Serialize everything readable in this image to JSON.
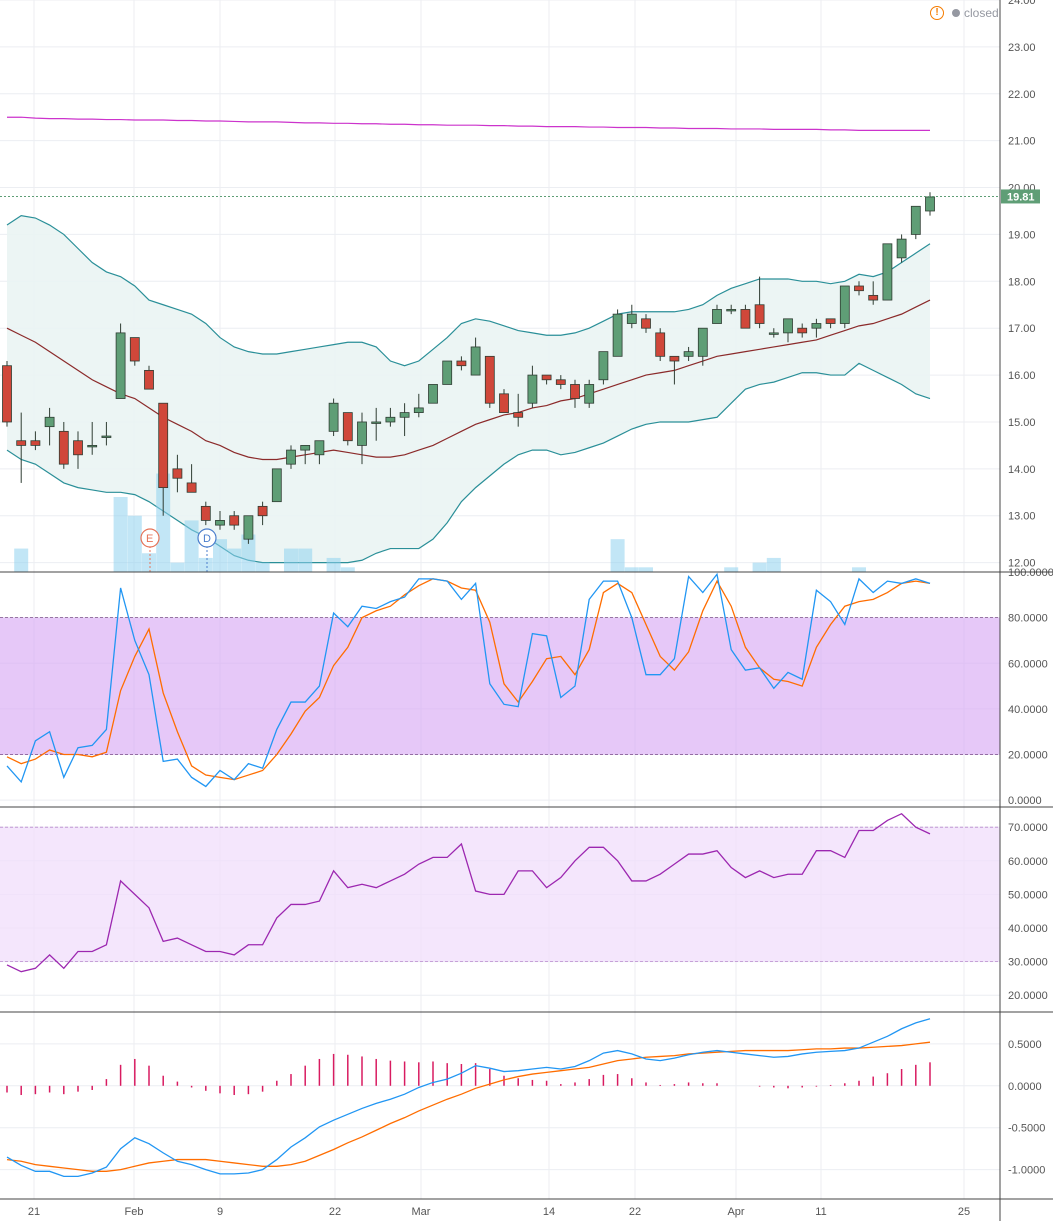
{
  "status": {
    "label": "closed"
  },
  "colors": {
    "up": "#5f9e76",
    "down": "#d0473a",
    "candle_border": "#2f3d33",
    "bb_band": "#2a8f98",
    "bb_basis": "#8b2a2a",
    "bb_fill": "#eaf4f3",
    "ma_line": "#cc33cc",
    "volume": "#8fd1ee",
    "k_line": "#2196f3",
    "d_line": "#ff6d00",
    "osc_band": "#d9aaf5",
    "rsi_line": "#9c27b0",
    "rsi_band": "#f0ddfb",
    "hist": "#d81b60",
    "price_tag": "#5f9e76",
    "marker_e": "#e57358",
    "marker_d": "#4a7dcc"
  },
  "chart_data": [
    {
      "type": "candlestick",
      "price_tag": "19.81",
      "yticks": [
        "12.00",
        "13.00",
        "14.00",
        "15.00",
        "16.00",
        "17.00",
        "18.00",
        "19.00",
        "20.00",
        "21.00",
        "22.00",
        "23.00",
        "24.00"
      ],
      "ylim": [
        11.8,
        24.0
      ],
      "xticks": [
        "21",
        "Feb",
        "9",
        "22",
        "Mar",
        "14",
        "22",
        "Apr",
        "11",
        "25"
      ],
      "events": [
        "E",
        "D"
      ],
      "candles": [
        [
          16.2,
          16.3,
          14.9,
          15.0
        ],
        [
          14.6,
          15.2,
          13.7,
          14.5
        ],
        [
          14.6,
          14.8,
          14.4,
          14.5
        ],
        [
          14.9,
          15.3,
          14.5,
          15.1
        ],
        [
          14.8,
          15.0,
          14.0,
          14.1
        ],
        [
          14.6,
          14.8,
          14.0,
          14.3
        ],
        [
          14.5,
          15.0,
          14.3,
          14.5
        ],
        [
          14.7,
          15.0,
          14.5,
          14.7
        ],
        [
          15.5,
          17.1,
          15.5,
          16.9
        ],
        [
          16.8,
          16.8,
          16.2,
          16.3
        ],
        [
          16.1,
          16.2,
          15.7,
          15.7
        ],
        [
          15.4,
          15.4,
          13.0,
          13.6
        ],
        [
          14.0,
          14.3,
          13.5,
          13.8
        ],
        [
          13.7,
          14.1,
          13.5,
          13.5
        ],
        [
          13.2,
          13.3,
          12.8,
          12.9
        ],
        [
          12.8,
          13.1,
          12.7,
          12.9
        ],
        [
          13.0,
          13.1,
          12.7,
          12.8
        ],
        [
          12.5,
          13.0,
          12.4,
          13.0
        ],
        [
          13.2,
          13.3,
          12.8,
          13.0
        ],
        [
          13.3,
          14.0,
          13.3,
          14.0
        ],
        [
          14.1,
          14.5,
          14.0,
          14.4
        ],
        [
          14.4,
          14.5,
          14.1,
          14.5
        ],
        [
          14.3,
          14.6,
          14.1,
          14.6
        ],
        [
          14.8,
          15.5,
          14.7,
          15.4
        ],
        [
          15.2,
          15.2,
          14.5,
          14.6
        ],
        [
          14.5,
          15.2,
          14.1,
          15.0
        ],
        [
          15.0,
          15.3,
          14.6,
          15.0
        ],
        [
          15.0,
          15.3,
          14.9,
          15.1
        ],
        [
          15.1,
          15.4,
          14.7,
          15.2
        ],
        [
          15.2,
          15.6,
          15.1,
          15.3
        ],
        [
          15.4,
          15.8,
          15.4,
          15.8
        ],
        [
          15.8,
          16.3,
          15.8,
          16.3
        ],
        [
          16.3,
          16.4,
          16.1,
          16.2
        ],
        [
          16.0,
          16.8,
          16.0,
          16.6
        ],
        [
          16.4,
          16.4,
          15.3,
          15.4
        ],
        [
          15.6,
          15.7,
          15.2,
          15.2
        ],
        [
          15.2,
          15.6,
          14.9,
          15.1
        ],
        [
          15.4,
          16.2,
          15.3,
          16.0
        ],
        [
          16.0,
          16.0,
          15.8,
          15.9
        ],
        [
          15.9,
          16.0,
          15.7,
          15.8
        ],
        [
          15.8,
          15.9,
          15.3,
          15.5
        ],
        [
          15.4,
          15.9,
          15.3,
          15.8
        ],
        [
          15.9,
          16.5,
          15.8,
          16.5
        ],
        [
          16.4,
          17.4,
          16.4,
          17.3
        ],
        [
          17.1,
          17.5,
          17.0,
          17.3
        ],
        [
          17.2,
          17.3,
          16.9,
          17.0
        ],
        [
          16.9,
          17.0,
          16.3,
          16.4
        ],
        [
          16.4,
          16.4,
          15.8,
          16.3
        ],
        [
          16.4,
          16.6,
          16.3,
          16.5
        ],
        [
          16.4,
          16.9,
          16.2,
          17.0
        ],
        [
          17.1,
          17.5,
          17.1,
          17.4
        ],
        [
          17.4,
          17.5,
          17.3,
          17.4
        ],
        [
          17.4,
          17.5,
          17.0,
          17.0
        ],
        [
          17.5,
          18.1,
          17.0,
          17.1
        ],
        [
          16.9,
          17.0,
          16.8,
          16.9
        ],
        [
          16.9,
          17.2,
          16.7,
          17.2
        ],
        [
          17.0,
          17.1,
          16.8,
          16.9
        ],
        [
          17.0,
          17.2,
          16.8,
          17.1
        ],
        [
          17.2,
          17.2,
          17.0,
          17.1
        ],
        [
          17.1,
          17.9,
          17.0,
          17.9
        ],
        [
          17.9,
          18.0,
          17.7,
          17.8
        ],
        [
          17.7,
          18.0,
          17.5,
          17.6
        ],
        [
          17.6,
          18.8,
          17.6,
          18.8
        ],
        [
          18.5,
          19.0,
          18.4,
          18.9
        ],
        [
          19.0,
          19.6,
          18.9,
          19.6
        ],
        [
          19.5,
          19.9,
          19.4,
          19.8
        ]
      ],
      "bb_upper": [
        19.2,
        19.4,
        19.35,
        19.2,
        19.0,
        18.7,
        18.4,
        18.2,
        18.1,
        17.9,
        17.6,
        17.5,
        17.4,
        17.3,
        17.1,
        16.8,
        16.6,
        16.5,
        16.45,
        16.45,
        16.5,
        16.55,
        16.6,
        16.65,
        16.7,
        16.7,
        16.6,
        16.3,
        16.2,
        16.3,
        16.55,
        16.8,
        17.1,
        17.2,
        17.15,
        17.05,
        16.95,
        16.9,
        16.85,
        16.85,
        16.9,
        17.0,
        17.15,
        17.3,
        17.35,
        17.35,
        17.35,
        17.35,
        17.4,
        17.5,
        17.7,
        17.85,
        17.95,
        18.05,
        18.05,
        18.05,
        18.0,
        18.0,
        17.95,
        18.0,
        18.15,
        18.1,
        18.2,
        18.4,
        18.6,
        18.8
      ],
      "bb_basis": [
        17.0,
        16.85,
        16.7,
        16.5,
        16.3,
        16.1,
        15.9,
        15.75,
        15.6,
        15.5,
        15.3,
        15.1,
        14.95,
        14.8,
        14.6,
        14.5,
        14.35,
        14.25,
        14.2,
        14.2,
        14.25,
        14.3,
        14.35,
        14.4,
        14.35,
        14.3,
        14.25,
        14.25,
        14.3,
        14.4,
        14.5,
        14.65,
        14.8,
        14.95,
        15.05,
        15.15,
        15.2,
        15.3,
        15.35,
        15.45,
        15.5,
        15.6,
        15.7,
        15.8,
        15.9,
        16.0,
        16.05,
        16.1,
        16.2,
        16.3,
        16.4,
        16.45,
        16.5,
        16.55,
        16.6,
        16.65,
        16.7,
        16.75,
        16.85,
        16.95,
        17.05,
        17.1,
        17.2,
        17.3,
        17.45,
        17.6
      ],
      "bb_lower": [
        14.4,
        14.2,
        14.1,
        13.9,
        13.7,
        13.6,
        13.55,
        13.5,
        13.5,
        13.45,
        13.3,
        13.1,
        12.9,
        12.7,
        12.55,
        12.35,
        12.15,
        12.05,
        12.0,
        12.0,
        12.0,
        12.0,
        12.0,
        12.0,
        12.0,
        12.05,
        12.2,
        12.3,
        12.3,
        12.3,
        12.5,
        12.85,
        13.3,
        13.6,
        13.85,
        14.1,
        14.3,
        14.4,
        14.4,
        14.3,
        14.35,
        14.45,
        14.55,
        14.7,
        14.85,
        14.95,
        15.0,
        15.0,
        15.0,
        15.05,
        15.1,
        15.4,
        15.7,
        15.8,
        15.85,
        15.95,
        16.05,
        16.05,
        16.0,
        16.0,
        16.25,
        16.1,
        15.95,
        15.8,
        15.6,
        15.5
      ],
      "ma_long": [
        21.5,
        21.5,
        21.48,
        21.47,
        21.47,
        21.46,
        21.46,
        21.45,
        21.45,
        21.44,
        21.44,
        21.44,
        21.43,
        21.43,
        21.42,
        21.42,
        21.41,
        21.4,
        21.4,
        21.4,
        21.39,
        21.38,
        21.38,
        21.37,
        21.37,
        21.36,
        21.36,
        21.35,
        21.35,
        21.34,
        21.34,
        21.33,
        21.33,
        21.33,
        21.32,
        21.32,
        21.31,
        21.31,
        21.3,
        21.3,
        21.3,
        21.29,
        21.29,
        21.28,
        21.28,
        21.28,
        21.27,
        21.27,
        21.26,
        21.26,
        21.26,
        21.25,
        21.25,
        21.25,
        21.24,
        21.24,
        21.24,
        21.24,
        21.23,
        21.23,
        21.22,
        21.22,
        21.22,
        21.22,
        21.22,
        21.22
      ],
      "volume": [
        11.2,
        12.3,
        11.0,
        10.9,
        11.3,
        10.5,
        10.2,
        11.1,
        13.4,
        13.0,
        12.2,
        13.9,
        12.0,
        12.9,
        12.1,
        12.5,
        12.3,
        12.6,
        12.0,
        11.6,
        12.3,
        12.3,
        11.5,
        12.1,
        11.9,
        11.3,
        11.3,
        11.0,
        11.0,
        11.0,
        11.2,
        11.4,
        11.3,
        11.3,
        11.8,
        11.3,
        11.5,
        11.7,
        11.4,
        11.3,
        11.7,
        11.4,
        11.6,
        12.5,
        11.9,
        11.9,
        11.6,
        11.7,
        11.3,
        11.5,
        11.3,
        11.9,
        11.7,
        12.0,
        12.1,
        11.6,
        11.3,
        11.5,
        11.6,
        11.4,
        11.9,
        11.8,
        11.8,
        11.5,
        11.6,
        11.5
      ]
    },
    {
      "type": "line",
      "name": "stochastic",
      "yticks": [
        "0.0000",
        "20.0000",
        "40.0000",
        "60.0000",
        "80.0000",
        "100.0000"
      ],
      "ylim": [
        -3,
        100
      ],
      "band": [
        20,
        80
      ],
      "k": [
        15,
        8,
        26,
        30,
        10,
        23,
        24,
        31,
        93,
        70,
        55,
        17,
        18,
        10,
        6,
        13,
        9,
        16,
        14,
        31,
        43,
        43,
        50,
        82,
        76,
        85,
        84,
        87,
        89,
        97,
        97,
        96,
        88,
        95,
        51,
        42,
        41,
        73,
        72,
        45,
        50,
        88,
        96,
        96,
        80,
        55,
        55,
        62,
        98,
        91,
        99,
        66,
        57,
        58,
        49,
        56,
        53,
        92,
        87,
        77,
        97,
        91,
        96,
        95,
        97,
        95
      ],
      "d": [
        19,
        16,
        18,
        22,
        20,
        20,
        19,
        21,
        48,
        63,
        75,
        47,
        30,
        15,
        11,
        10,
        9,
        11,
        13,
        20,
        29,
        39,
        45,
        59,
        67,
        80,
        83,
        85,
        90,
        94,
        97,
        96,
        93,
        92,
        78,
        51,
        43,
        52,
        62,
        63,
        55,
        66,
        91,
        95,
        91,
        77,
        63,
        57,
        65,
        83,
        96,
        85,
        67,
        58,
        53,
        52,
        50,
        67,
        77,
        85,
        87,
        88,
        91,
        95,
        96,
        95
      ]
    },
    {
      "type": "line",
      "name": "rsi",
      "yticks": [
        "20.0000",
        "30.0000",
        "40.0000",
        "50.0000",
        "60.0000",
        "70.0000"
      ],
      "ylim": [
        15,
        76
      ],
      "band": [
        30,
        70
      ],
      "rsi": [
        29,
        27,
        28,
        32,
        28,
        33,
        33,
        35,
        54,
        50,
        46,
        36,
        37,
        35,
        33,
        33,
        32,
        35,
        35,
        43,
        47,
        47,
        48,
        57,
        52,
        53,
        52,
        54,
        56,
        59,
        61,
        61,
        65,
        51,
        50,
        50,
        57,
        57,
        52,
        55,
        60,
        64,
        64,
        60,
        54,
        54,
        56,
        59,
        62,
        62,
        63,
        58,
        55,
        57,
        55,
        56,
        56,
        63,
        63,
        61,
        69,
        69,
        72,
        74,
        70,
        68
      ]
    },
    {
      "type": "line",
      "name": "macd",
      "yticks": [
        "-1.0000",
        "-0.5000",
        "0.0000",
        "0.5000"
      ],
      "ylim": [
        -1.35,
        0.88
      ],
      "macd": [
        -0.85,
        -0.95,
        -1.02,
        -1.02,
        -1.08,
        -1.08,
        -1.04,
        -0.97,
        -0.75,
        -0.62,
        -0.69,
        -0.8,
        -0.9,
        -0.94,
        -1.0,
        -1.05,
        -1.05,
        -1.04,
        -1.0,
        -0.88,
        -0.73,
        -0.62,
        -0.49,
        -0.41,
        -0.34,
        -0.27,
        -0.21,
        -0.16,
        -0.1,
        -0.02,
        0.04,
        0.08,
        0.15,
        0.24,
        0.21,
        0.17,
        0.18,
        0.2,
        0.22,
        0.2,
        0.23,
        0.3,
        0.39,
        0.42,
        0.38,
        0.32,
        0.3,
        0.33,
        0.37,
        0.4,
        0.42,
        0.4,
        0.38,
        0.36,
        0.34,
        0.35,
        0.38,
        0.4,
        0.41,
        0.42,
        0.45,
        0.52,
        0.59,
        0.68,
        0.75,
        0.8
      ],
      "signal": [
        -0.88,
        -0.9,
        -0.94,
        -0.96,
        -0.98,
        -1.0,
        -1.02,
        -1.02,
        -1.0,
        -0.96,
        -0.92,
        -0.9,
        -0.88,
        -0.88,
        -0.88,
        -0.9,
        -0.92,
        -0.94,
        -0.96,
        -0.96,
        -0.94,
        -0.9,
        -0.83,
        -0.76,
        -0.68,
        -0.61,
        -0.53,
        -0.45,
        -0.38,
        -0.3,
        -0.23,
        -0.16,
        -0.1,
        -0.03,
        0.02,
        0.07,
        0.11,
        0.14,
        0.16,
        0.18,
        0.2,
        0.22,
        0.26,
        0.3,
        0.32,
        0.34,
        0.35,
        0.36,
        0.38,
        0.39,
        0.4,
        0.41,
        0.42,
        0.42,
        0.42,
        0.42,
        0.43,
        0.44,
        0.44,
        0.45,
        0.45,
        0.46,
        0.47,
        0.48,
        0.5,
        0.52
      ],
      "hist": [
        -0.08,
        -0.11,
        -0.1,
        -0.08,
        -0.1,
        -0.07,
        -0.05,
        0.08,
        0.25,
        0.32,
        0.24,
        0.12,
        0.05,
        -0.02,
        -0.06,
        -0.09,
        -0.11,
        -0.1,
        -0.07,
        0.06,
        0.14,
        0.24,
        0.32,
        0.38,
        0.37,
        0.35,
        0.32,
        0.3,
        0.29,
        0.28,
        0.29,
        0.27,
        0.26,
        0.27,
        0.2,
        0.12,
        0.09,
        0.07,
        0.06,
        0.02,
        0.04,
        0.08,
        0.13,
        0.14,
        0.09,
        0.04,
        0.01,
        0.02,
        0.04,
        0.03,
        0.03,
        0.0,
        0.0,
        -0.01,
        -0.02,
        -0.03,
        -0.02,
        -0.01,
        0.01,
        0.03,
        0.06,
        0.11,
        0.15,
        0.2,
        0.25,
        0.28
      ]
    }
  ]
}
